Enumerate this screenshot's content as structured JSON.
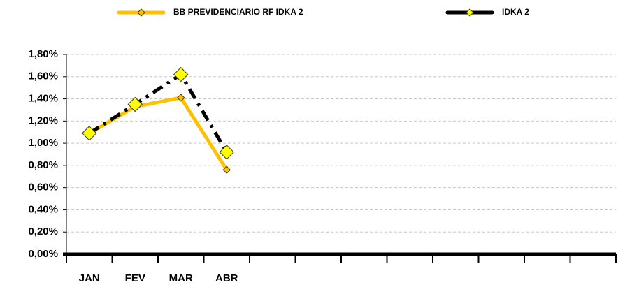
{
  "chart_data": {
    "type": "line",
    "categories": [
      "JAN",
      "FEV",
      "MAR",
      "ABR",
      null,
      null,
      null,
      null,
      null,
      null,
      null,
      null
    ],
    "series": [
      {
        "name": "BB PREVIDENCIARIO RF IDKA 2",
        "color": "#FFC000",
        "marker_color": "#FFC000",
        "values": [
          1.09,
          1.33,
          1.41,
          0.76,
          null,
          null,
          null,
          null,
          null,
          null,
          null,
          null
        ]
      },
      {
        "name": "IDKA 2",
        "color": "#000000",
        "marker_color": "#FFFF00",
        "values": [
          1.09,
          1.35,
          1.62,
          0.92,
          null,
          null,
          null,
          null,
          null,
          null,
          null,
          null
        ]
      }
    ],
    "ylim": [
      0,
      1.8
    ],
    "yticks": [
      {
        "value": 0,
        "label": "0,00%"
      },
      {
        "value": 0.2,
        "label": "0,20%"
      },
      {
        "value": 0.4,
        "label": "0,40%"
      },
      {
        "value": 0.6,
        "label": "0,60%"
      },
      {
        "value": 0.8,
        "label": "0,80%"
      },
      {
        "value": 1.0,
        "label": "1,00%"
      },
      {
        "value": 1.2,
        "label": "1,20%"
      },
      {
        "value": 1.4,
        "label": "1,40%"
      },
      {
        "value": 1.6,
        "label": "1,60%"
      },
      {
        "value": 1.8,
        "label": "1,80%"
      }
    ],
    "grid": true,
    "legend": "top"
  }
}
